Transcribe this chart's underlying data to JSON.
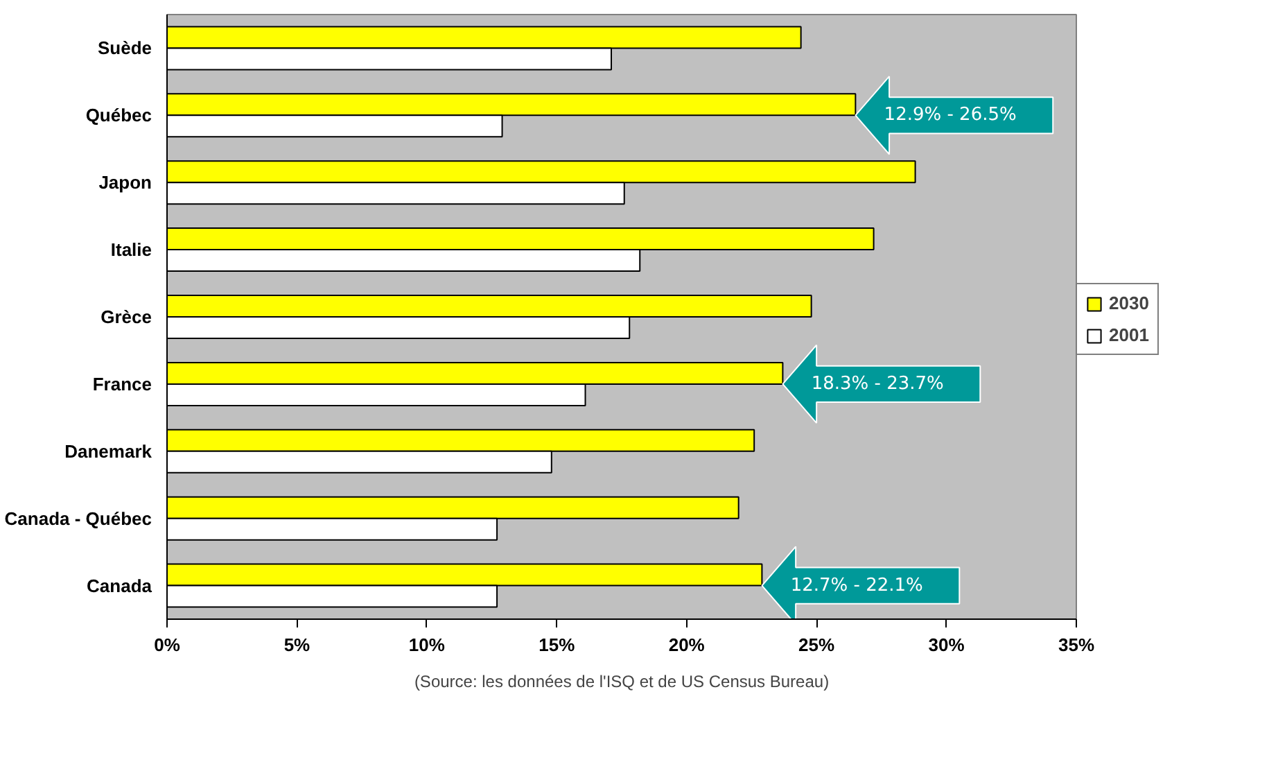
{
  "chart_data": {
    "type": "bar",
    "orientation": "horizontal",
    "categories": [
      "Suède",
      "Québec",
      "Japon",
      "Italie",
      "Grèce",
      "France",
      "Danemark",
      "Canada - Québec",
      "Canada"
    ],
    "series": [
      {
        "name": "2030",
        "color": "#ffff00",
        "values": [
          24.4,
          26.5,
          28.8,
          27.2,
          24.8,
          23.7,
          22.6,
          22.0,
          22.9
        ]
      },
      {
        "name": "2001",
        "color": "#ffffff",
        "values": [
          17.1,
          12.9,
          17.6,
          18.2,
          17.8,
          16.1,
          14.8,
          12.7,
          12.7
        ]
      }
    ],
    "xlim": [
      0,
      35
    ],
    "xticks": [
      {
        "value": 0,
        "label": "0%"
      },
      {
        "value": 5,
        "label": "5%"
      },
      {
        "value": 10,
        "label": "10%"
      },
      {
        "value": 15,
        "label": "15%"
      },
      {
        "value": 20,
        "label": "20%"
      },
      {
        "value": 25,
        "label": "25%"
      },
      {
        "value": 30,
        "label": "30%"
      },
      {
        "value": 35,
        "label": "35%"
      }
    ],
    "grid": false,
    "legend": "right",
    "annotations": [
      {
        "text": "12.9% - 26.5%",
        "x": 26.5,
        "y": "Québec"
      },
      {
        "text": "18.3%  - 23.7%",
        "x": 23.7,
        "y": "France"
      },
      {
        "text": "12.7% - 22.1%",
        "x": 22.9,
        "y": "Canada"
      },
      "(Source: les données de l'ISQ et de US Census Bureau)"
    ]
  }
}
